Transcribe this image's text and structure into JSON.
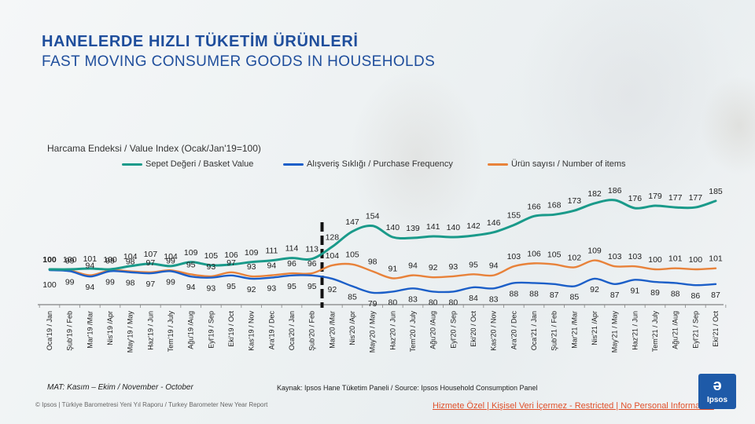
{
  "title_tr": "HANELERDE HIZLI TÜKETİM ÜRÜNLERİ",
  "title_en": "FAST MOVING CONSUMER  GOODS IN HOUSEHOLDS",
  "footer": {
    "mat": "MAT: Kasım – Ekim  / November - October",
    "source": "Kaynak: Ipsos Hane Tüketim Paneli / Source: Ipsos Household Consumption Panel",
    "copyright": "© Ipsos | Türkiye Barometresi Yeni Yıl Raporu / Turkey Barometer New Year Report",
    "classification": "Hizmete Özel | Kişisel Veri İçermez - Restricted | No Personal Information",
    "logo_text": "Ipsos"
  },
  "colors": {
    "title": "#1f4e9c",
    "basket": "#1a9a8a",
    "frequency": "#1c5fc8",
    "items": "#e8823a"
  },
  "chart_data": {
    "type": "line",
    "title": "Harcama Endeksi / Value Index (Ocak/Jan'19=100)",
    "categories": [
      "Oca'19 / Jan",
      "Şub'19 / Feb",
      "Mar'19 /Mar",
      "Nis'19 /Apr",
      "May'19 / May",
      "Haz'19 / Jun",
      "Tem'19 / July",
      "Ağu'19 /Aug",
      "Eyl'19 / Sep",
      "Eki'19 / Oct",
      "Kas'19 / Nov",
      "Ara'19 / Dec",
      "Oca'20 / Jan",
      "Şub'20 / Feb",
      "Mar'20 /Mar",
      "Nis'20 /Apr",
      "May'20 / May",
      "Haz'20 / Jun",
      "Tem'20 / July",
      "Ağu'20 /Aug",
      "Eyl'20 / Sep",
      "Eki'20 / Oct",
      "Kas'20 / Nov",
      "Ara'20 / Dec",
      "Oca'21 / Jan",
      "Şub'21 / Feb",
      "Mar'21 /Mar",
      "Nis'21 /Apr",
      "May'21 / May",
      "Haz'21 / Jun",
      "Tem'21 / July",
      "Ağu'21 /Aug",
      "Eyl'21 / Sep",
      "Eki'21 / Oct"
    ],
    "series": [
      {
        "name": "Sepet Değeri / Basket Value",
        "color": "#1a9a8a",
        "values": [
          100,
          100,
          101,
          100,
          104,
          107,
          104,
          109,
          105,
          106,
          109,
          111,
          114,
          113,
          128,
          147,
          154,
          140,
          139,
          141,
          140,
          142,
          146,
          155,
          166,
          168,
          173,
          182,
          186,
          176,
          179,
          177,
          177,
          185
        ]
      },
      {
        "name": "Alışveriş Sıklığı / Purchase Frequency",
        "color": "#1c5fc8",
        "values": [
          100,
          99,
          94,
          99,
          98,
          97,
          99,
          94,
          93,
          95,
          92,
          93,
          95,
          95,
          92,
          85,
          79,
          80,
          83,
          80,
          80,
          84,
          83,
          88,
          88,
          87,
          85,
          92,
          87,
          91,
          89,
          88,
          86,
          87
        ]
      },
      {
        "name": "Ürün sayısı / Number of items",
        "color": "#e8823a",
        "values": [
          100,
          99,
          94,
          99,
          98,
          97,
          99,
          95,
          93,
          97,
          93,
          94,
          96,
          96,
          104,
          105,
          98,
          91,
          94,
          92,
          93,
          95,
          94,
          103,
          106,
          105,
          102,
          109,
          103,
          103,
          100,
          101,
          100,
          101
        ]
      }
    ],
    "marker_between": [
      "Şub'20 / Feb",
      "Mar'20 /Mar"
    ],
    "legend_position": "top"
  }
}
